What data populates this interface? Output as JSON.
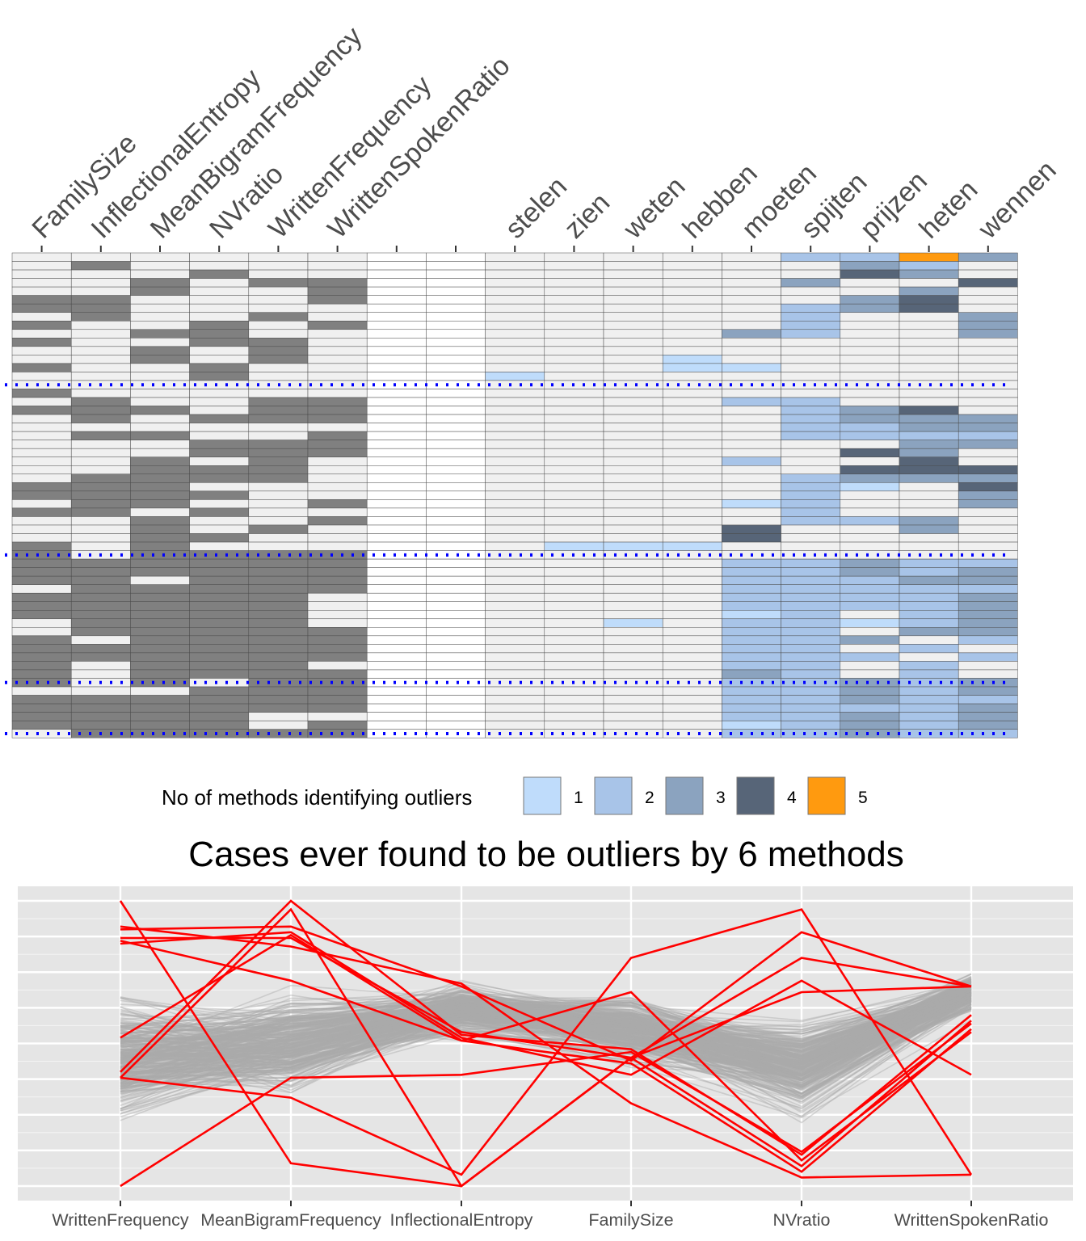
{
  "chart_data": [
    {
      "type": "heatmap",
      "columns": [
        "FamilySize",
        "InflectionalEntropy",
        "MeanBigramFrequency",
        "NVratio",
        "WrittenFrequency",
        "WrittenSpokenRatio",
        "",
        "",
        "stelen",
        "zien",
        "weten",
        "hebben",
        "moeten",
        "spijten",
        "prijzen",
        "heten",
        "wennen"
      ],
      "n_rows": 57,
      "group_separators_after_row": [
        15,
        35,
        50,
        56
      ],
      "legend": {
        "title": "No of methods identifying outliers",
        "levels": [
          "1",
          "2",
          "3",
          "4",
          "5"
        ],
        "colors": [
          "#bfdcfb",
          "#a8c4e8",
          "#8ba3bf",
          "#576578",
          "#ff9a0f"
        ]
      },
      "binary_colors": {
        "off": "#f0f0f0",
        "on": "#808080",
        "empty": "#ffffff"
      },
      "binary_columns": [
        [
          1,
          1,
          1,
          1,
          1,
          2,
          2,
          1,
          2,
          1,
          2,
          1,
          1,
          2,
          1,
          1,
          2,
          1,
          2,
          1,
          1,
          1,
          1,
          1,
          1,
          1,
          1,
          2,
          2,
          1,
          2,
          1,
          1,
          1,
          2,
          2,
          2,
          2,
          2,
          1,
          2,
          2,
          2,
          1,
          1,
          2,
          2,
          2,
          2,
          2,
          2,
          1,
          2,
          2,
          2,
          2,
          1
        ],
        [
          1,
          2,
          1,
          1,
          1,
          2,
          2,
          2,
          1,
          1,
          1,
          1,
          1,
          1,
          1,
          1,
          1,
          2,
          2,
          2,
          1,
          2,
          1,
          1,
          1,
          1,
          2,
          2,
          2,
          2,
          2,
          1,
          1,
          1,
          1,
          1,
          2,
          2,
          2,
          2,
          2,
          2,
          2,
          2,
          2,
          1,
          2,
          2,
          1,
          1,
          1,
          1,
          2,
          2,
          2,
          2,
          2
        ],
        [
          1,
          1,
          1,
          2,
          2,
          1,
          1,
          1,
          1,
          2,
          1,
          2,
          2,
          1,
          1,
          1,
          1,
          1,
          2,
          1,
          1,
          2,
          1,
          1,
          2,
          2,
          2,
          2,
          2,
          2,
          1,
          2,
          2,
          2,
          2,
          2,
          2,
          2,
          1,
          2,
          2,
          2,
          2,
          2,
          2,
          2,
          2,
          2,
          2,
          2,
          2,
          1,
          2,
          2,
          2,
          2,
          2
        ],
        [
          1,
          1,
          2,
          1,
          1,
          1,
          1,
          1,
          2,
          2,
          2,
          1,
          1,
          2,
          2,
          1,
          1,
          1,
          1,
          2,
          1,
          1,
          2,
          2,
          1,
          2,
          2,
          1,
          2,
          1,
          2,
          1,
          1,
          2,
          1,
          2,
          2,
          2,
          2,
          2,
          2,
          2,
          2,
          2,
          2,
          2,
          2,
          2,
          2,
          2,
          1,
          2,
          2,
          2,
          2,
          2,
          2
        ],
        [
          1,
          1,
          1,
          2,
          1,
          1,
          1,
          2,
          1,
          1,
          2,
          2,
          2,
          1,
          1,
          1,
          1,
          2,
          2,
          2,
          1,
          1,
          2,
          2,
          2,
          2,
          2,
          1,
          1,
          1,
          1,
          1,
          2,
          1,
          1,
          2,
          2,
          2,
          2,
          2,
          2,
          2,
          2,
          2,
          2,
          2,
          2,
          2,
          2,
          2,
          2,
          2,
          2,
          2,
          1,
          1,
          2
        ],
        [
          1,
          1,
          1,
          2,
          2,
          2,
          1,
          1,
          2,
          1,
          1,
          1,
          1,
          1,
          1,
          1,
          1,
          2,
          2,
          2,
          1,
          2,
          2,
          2,
          1,
          1,
          1,
          1,
          1,
          2,
          1,
          2,
          1,
          1,
          1,
          2,
          2,
          2,
          2,
          2,
          1,
          1,
          1,
          1,
          2,
          2,
          2,
          2,
          1,
          2,
          2,
          2,
          2,
          2,
          1,
          2,
          2
        ],
        [
          0,
          0,
          0,
          0,
          0,
          0,
          0,
          0,
          0,
          0,
          0,
          0,
          0,
          0,
          0,
          0,
          0,
          0,
          0,
          0,
          0,
          0,
          0,
          0,
          0,
          0,
          0,
          0,
          0,
          0,
          0,
          0,
          0,
          0,
          0,
          0,
          0,
          0,
          0,
          0,
          0,
          0,
          0,
          0,
          0,
          0,
          0,
          0,
          0,
          0,
          0,
          0,
          0,
          0,
          0,
          0,
          0
        ],
        [
          0,
          0,
          0,
          0,
          0,
          0,
          0,
          0,
          0,
          0,
          0,
          0,
          0,
          0,
          0,
          0,
          0,
          0,
          0,
          0,
          0,
          0,
          0,
          0,
          0,
          0,
          0,
          0,
          0,
          0,
          0,
          0,
          0,
          0,
          0,
          0,
          0,
          0,
          0,
          0,
          0,
          0,
          0,
          0,
          0,
          0,
          0,
          0,
          0,
          0,
          0,
          0,
          0,
          0,
          0,
          0,
          0
        ]
      ],
      "outlier_columns": [
        [
          0,
          0,
          0,
          0,
          0,
          0,
          0,
          0,
          0,
          0,
          0,
          0,
          0,
          0,
          1,
          0,
          0,
          0,
          0,
          0,
          0,
          0,
          0,
          0,
          0,
          0,
          0,
          0,
          0,
          0,
          0,
          0,
          0,
          0,
          0,
          0,
          0,
          0,
          0,
          0,
          0,
          0,
          0,
          0,
          0,
          0,
          0,
          0,
          0,
          0,
          0,
          0,
          0,
          0,
          0,
          0,
          0
        ],
        [
          0,
          0,
          0,
          0,
          0,
          0,
          0,
          0,
          0,
          0,
          0,
          0,
          0,
          0,
          0,
          0,
          0,
          0,
          0,
          0,
          0,
          0,
          0,
          0,
          0,
          0,
          0,
          0,
          0,
          0,
          0,
          0,
          0,
          0,
          1,
          0,
          0,
          0,
          0,
          0,
          0,
          0,
          0,
          0,
          0,
          0,
          0,
          0,
          0,
          0,
          0,
          0,
          0,
          0,
          0,
          0,
          0
        ],
        [
          0,
          0,
          0,
          0,
          0,
          0,
          0,
          0,
          0,
          0,
          0,
          0,
          0,
          0,
          0,
          0,
          0,
          0,
          0,
          0,
          0,
          0,
          0,
          0,
          0,
          0,
          0,
          0,
          0,
          0,
          0,
          0,
          0,
          0,
          1,
          0,
          0,
          0,
          0,
          0,
          0,
          0,
          0,
          1,
          0,
          0,
          0,
          0,
          0,
          0,
          0,
          0,
          0,
          0,
          0,
          0,
          0
        ],
        [
          0,
          0,
          0,
          0,
          0,
          0,
          0,
          0,
          0,
          0,
          0,
          0,
          1,
          1,
          0,
          0,
          0,
          0,
          0,
          0,
          0,
          0,
          0,
          0,
          0,
          0,
          0,
          0,
          0,
          0,
          0,
          0,
          0,
          0,
          1,
          0,
          0,
          0,
          0,
          0,
          0,
          0,
          0,
          0,
          0,
          0,
          0,
          0,
          0,
          0,
          0,
          0,
          0,
          0,
          0,
          0,
          0
        ],
        [
          0,
          0,
          0,
          0,
          0,
          0,
          0,
          0,
          0,
          3,
          0,
          0,
          0,
          1,
          0,
          0,
          0,
          2,
          0,
          0,
          0,
          0,
          0,
          0,
          2,
          0,
          0,
          0,
          0,
          1,
          0,
          0,
          4,
          4,
          0,
          0,
          2,
          2,
          2,
          2,
          2,
          2,
          1,
          2,
          2,
          2,
          2,
          2,
          2,
          3,
          2,
          2,
          2,
          2,
          2,
          1,
          2
        ],
        [
          2,
          0,
          0,
          3,
          0,
          0,
          2,
          2,
          2,
          2,
          0,
          0,
          0,
          0,
          0,
          0,
          0,
          2,
          2,
          2,
          2,
          2,
          0,
          0,
          0,
          0,
          2,
          2,
          2,
          2,
          2,
          2,
          0,
          0,
          0,
          0,
          2,
          2,
          2,
          2,
          2,
          2,
          2,
          2,
          2,
          2,
          2,
          2,
          2,
          2,
          2,
          2,
          2,
          2,
          2,
          2,
          2
        ],
        [
          2,
          3,
          4,
          0,
          0,
          3,
          3,
          0,
          0,
          0,
          0,
          0,
          0,
          0,
          0,
          0,
          0,
          0,
          3,
          3,
          2,
          2,
          0,
          4,
          0,
          4,
          3,
          1,
          0,
          0,
          0,
          2,
          0,
          0,
          0,
          0,
          3,
          3,
          2,
          2,
          2,
          2,
          0,
          1,
          0,
          3,
          0,
          2,
          0,
          0,
          3,
          3,
          3,
          2,
          3,
          3,
          3
        ],
        [
          5,
          2,
          3,
          0,
          3,
          4,
          4,
          0,
          0,
          0,
          0,
          0,
          0,
          0,
          0,
          0,
          0,
          0,
          4,
          3,
          3,
          2,
          3,
          3,
          4,
          4,
          3,
          0,
          0,
          0,
          0,
          3,
          3,
          0,
          0,
          0,
          2,
          2,
          3,
          2,
          2,
          2,
          2,
          2,
          3,
          0,
          2,
          0,
          2,
          2,
          2,
          2,
          2,
          2,
          2,
          2,
          2
        ],
        [
          3,
          0,
          0,
          4,
          0,
          0,
          0,
          3,
          3,
          3,
          0,
          0,
          0,
          0,
          0,
          0,
          0,
          0,
          0,
          3,
          3,
          2,
          3,
          0,
          0,
          4,
          3,
          4,
          3,
          3,
          0,
          0,
          0,
          0,
          0,
          0,
          2,
          3,
          3,
          2,
          3,
          3,
          3,
          3,
          3,
          2,
          0,
          2,
          0,
          0,
          3,
          3,
          2,
          3,
          3,
          3,
          2
        ]
      ]
    },
    {
      "type": "line",
      "title": "Cases ever found to be outliers by 6 methods",
      "categories": [
        "WrittenFrequency",
        "MeanBigramFrequency",
        "InflectionalEntropy",
        "FamilySize",
        "NVratio",
        "WrittenSpokenRatio"
      ],
      "ylim": [
        0,
        1
      ],
      "grid": true,
      "background_series_color": "#aaaaaa",
      "highlight_color": "#ff0000",
      "highlighted_series": [
        [
          1.0,
          0.08,
          0.0,
          0.45,
          0.8,
          0.7
        ],
        [
          0.91,
          0.84,
          0.71,
          0.29,
          0.03,
          0.04
        ],
        [
          0.4,
          1.0,
          0.53,
          0.48,
          0.11,
          0.6
        ],
        [
          0.87,
          0.87,
          0.54,
          0.45,
          0.68,
          0.7
        ],
        [
          0.38,
          0.97,
          0.0,
          0.45,
          0.07,
          0.58
        ],
        [
          0.9,
          0.91,
          0.7,
          0.44,
          0.89,
          0.7
        ],
        [
          0.86,
          0.72,
          0.51,
          0.68,
          0.09,
          0.54
        ],
        [
          0.52,
          0.88,
          0.51,
          0.43,
          0.05,
          0.55
        ],
        [
          0.38,
          0.31,
          0.04,
          0.8,
          0.97,
          0.04
        ],
        [
          0.85,
          0.89,
          0.52,
          0.39,
          0.72,
          0.39
        ],
        [
          0.0,
          0.38,
          0.39,
          0.47,
          0.12,
          0.57
        ]
      ]
    }
  ]
}
